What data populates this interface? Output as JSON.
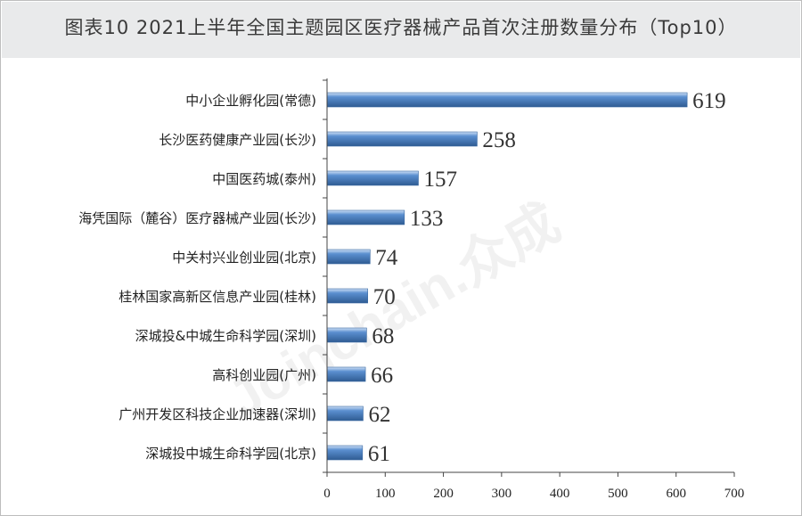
{
  "title": "图表10  2021上半年全国主题园区医疗器械产品首次注册数量分布（Top10）",
  "watermark": "Joinchain.众成",
  "chart_data": {
    "type": "bar",
    "orientation": "horizontal",
    "categories": [
      "中小企业孵化园(常德)",
      "长沙医药健康产业园(长沙)",
      "中国医药城(泰州)",
      "海凭国际（麓谷）医疗器械产业园(长沙)",
      "中关村兴业创业园(北京)",
      "桂林国家高新区信息产业园(桂林)",
      "深城投&中城生命科学园(深圳)",
      "高科创业园(广州)",
      "广州开发区科技企业加速器(深圳)",
      "深城投中城生命科学园(北京)"
    ],
    "values": [
      619,
      258,
      157,
      133,
      74,
      70,
      68,
      66,
      62,
      61
    ],
    "xlim": [
      0,
      700
    ],
    "xticks": [
      0,
      100,
      200,
      300,
      400,
      500,
      600,
      700
    ],
    "title": "图表10  2021上半年全国主题园区医疗器械产品首次注册数量分布（Top10）",
    "xlabel": "",
    "ylabel": "",
    "grid": false,
    "legend": "none",
    "bar_color": "#5b8fd0",
    "bar_color_dark": "#2f5c93",
    "bar_color_light": "#cfe0f5"
  }
}
